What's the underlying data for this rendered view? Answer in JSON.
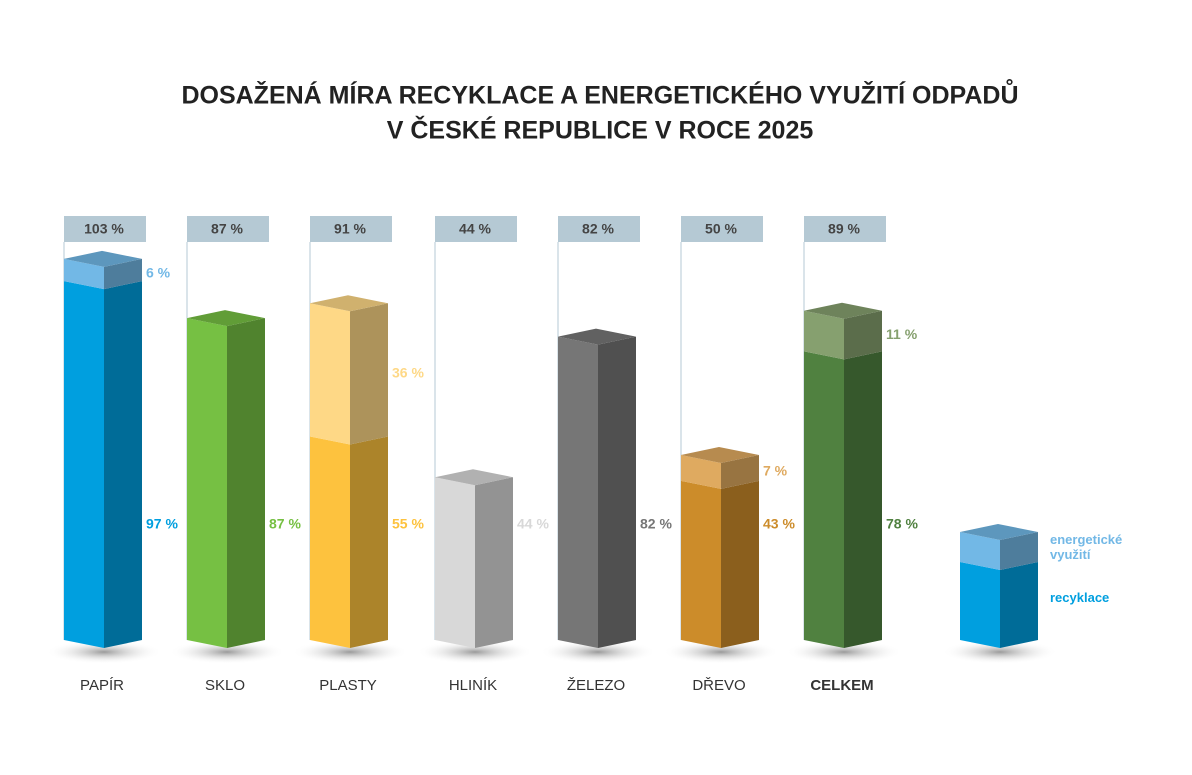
{
  "chart_data": {
    "type": "bar3d-stacked",
    "title": [
      "DOSAŽENÁ MÍRA RECYKLACE A ENERGETICKÉHO VYUŽITÍ ODPADŮ",
      "V ČESKÉ REPUBLICE V ROCE 2025"
    ],
    "categories": [
      "PAPÍR",
      "SKLO",
      "PLASTY",
      "HLINÍK",
      "ŽELEZO",
      "DŘEVO",
      "CELKEM"
    ],
    "totals": [
      "103 %",
      "87 %",
      "91 %",
      "44 %",
      "82 %",
      "50 %",
      "89 %"
    ],
    "series": [
      {
        "name": "recyklace",
        "colors": [
          "#009fdf",
          "#76c043",
          "#fdc23e",
          "#d8d8d8",
          "#767676",
          "#cc8c2a",
          "#508140"
        ],
        "values": [
          97,
          87,
          55,
          44,
          82,
          43,
          78
        ],
        "value_labels": [
          "97 %",
          "87 %",
          "55 %",
          "44 %",
          "82 %",
          "43 %",
          "78 %"
        ]
      },
      {
        "name": "energetické využití",
        "colors": [
          "#72b8e6",
          null,
          "#fed886",
          null,
          null,
          "#dfaa60",
          "#86a06f"
        ],
        "values": [
          6,
          null,
          36,
          null,
          null,
          7,
          11
        ],
        "value_labels": [
          "6 %",
          null,
          "36 %",
          null,
          null,
          "7 %",
          "11 %"
        ]
      }
    ]
  }
}
